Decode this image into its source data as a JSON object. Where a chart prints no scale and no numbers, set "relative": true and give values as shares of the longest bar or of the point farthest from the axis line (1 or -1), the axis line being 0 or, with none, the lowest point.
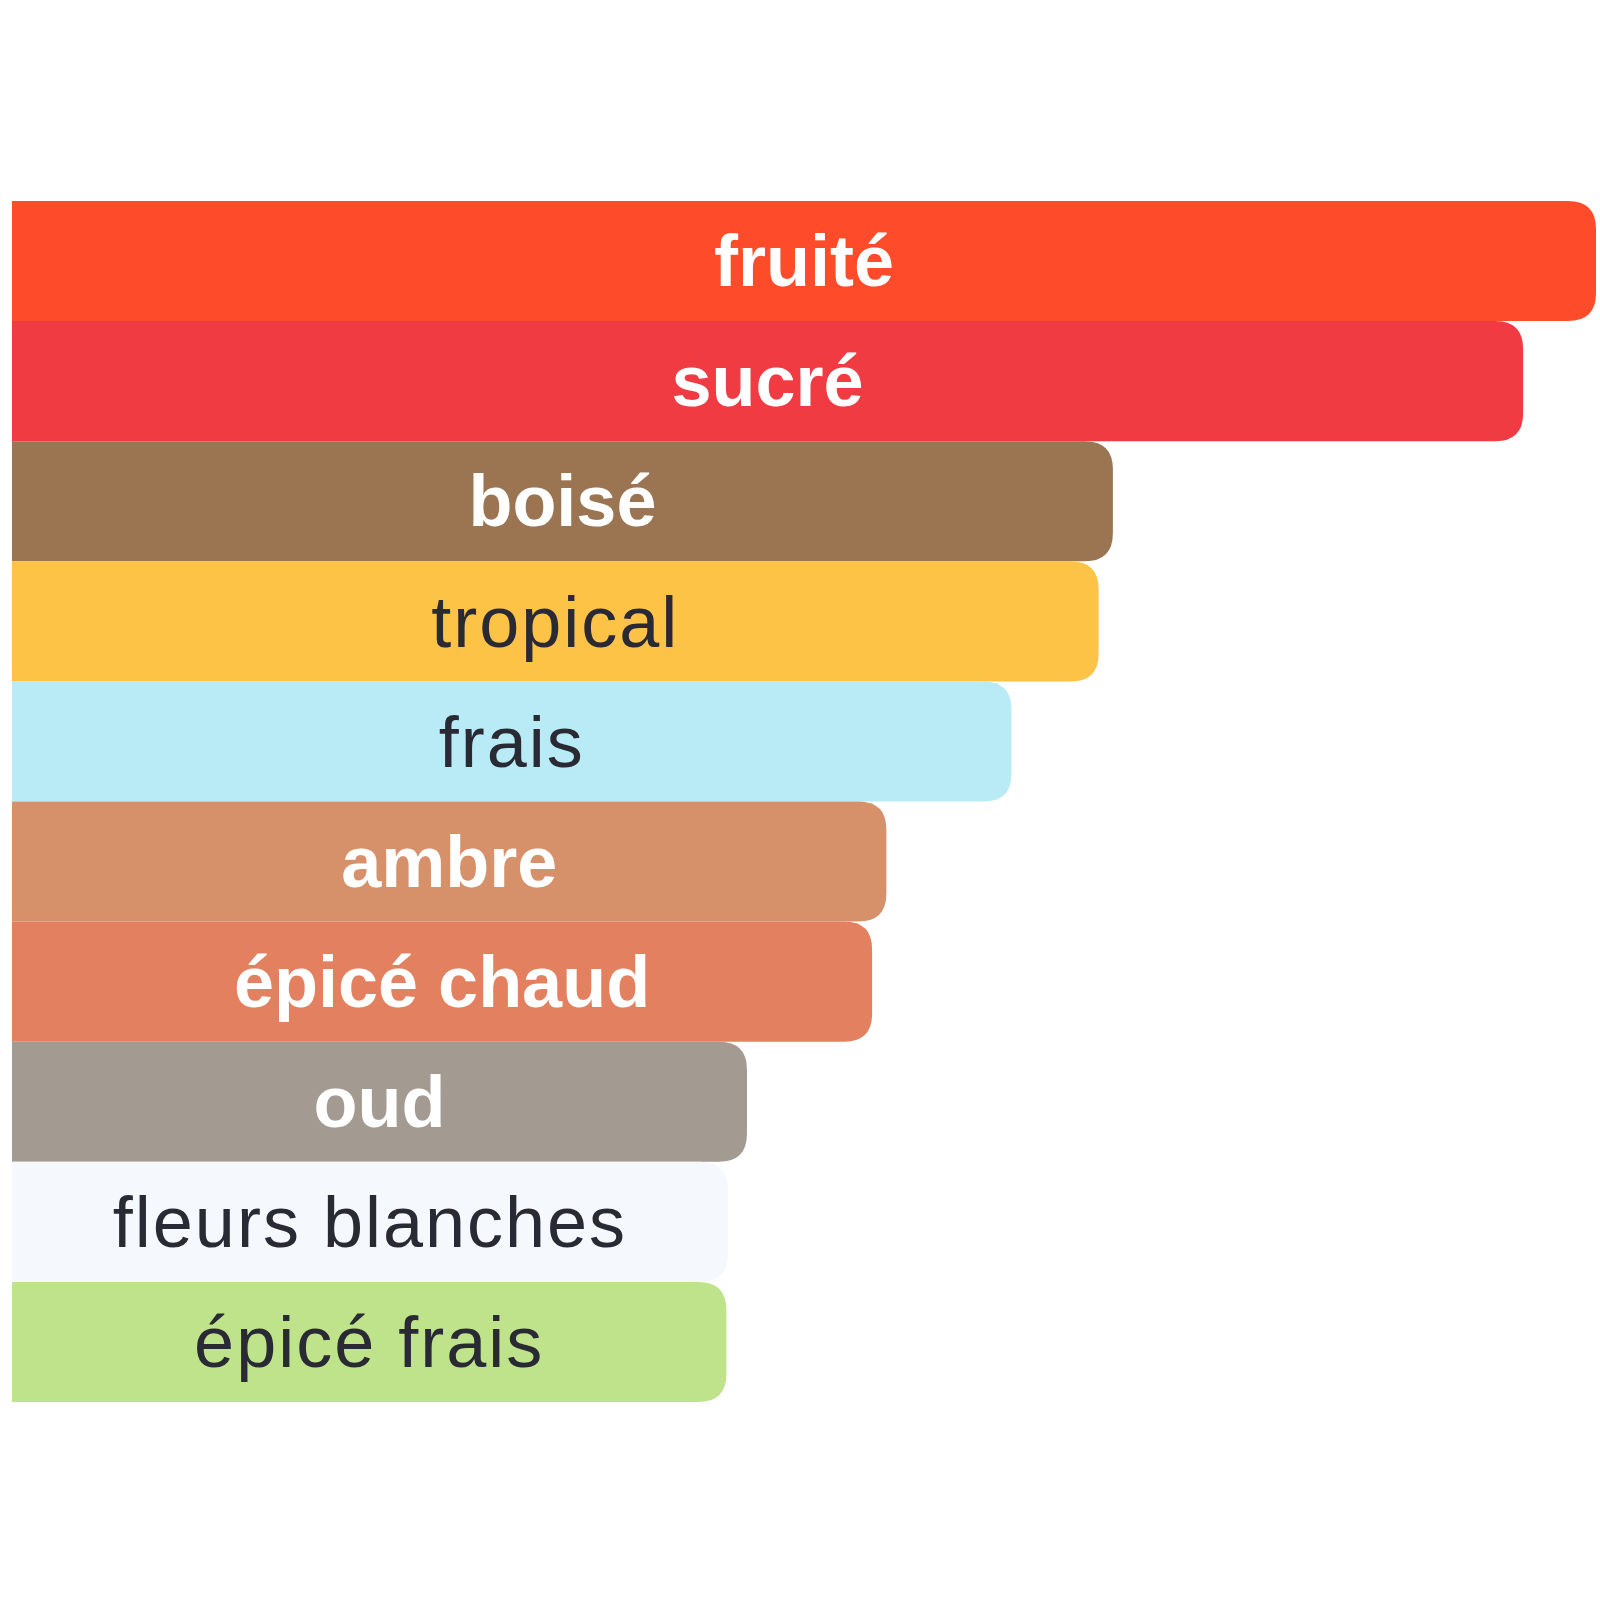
{
  "chart_data": {
    "type": "bar",
    "orientation": "horizontal",
    "relative": true,
    "categories": [
      "fruité",
      "sucré",
      "boisé",
      "tropical",
      "frais",
      "ambre",
      "épicé chaud",
      "oud",
      "fleurs blanches",
      "épicé frais"
    ],
    "values": [
      1,
      0.954,
      0.695,
      0.686,
      0.631,
      0.552,
      0.543,
      0.464,
      0.452,
      0.451
    ],
    "colors": [
      "#fe4c2b",
      "#f03b42",
      "#9b7552",
      "#fdc347",
      "#b8ebf6",
      "#d6916b",
      "#e2805f",
      "#a39a91",
      "#f5f8fd",
      "#bfe38b"
    ]
  }
}
